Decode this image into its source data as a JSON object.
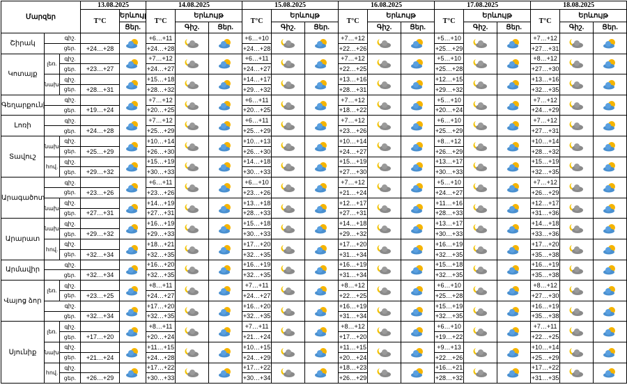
{
  "header": {
    "region": "Մարզեր",
    "temp": "T°C",
    "phen": "Երևույթ",
    "night": "Գիշ.",
    "day": "Ցեր.",
    "dates": [
      "13.08.2025",
      "14.08.2025",
      "15.08.2025",
      "16.08.2025",
      "17.08.2025",
      "18.08.2025"
    ]
  },
  "regions": [
    {
      "name": "Շիրակ",
      "blocks": [
        {
          "lines": [
            "գիշ.",
            "ցեր."
          ],
          "first": "+24…+28",
          "days": [
            [
              "+6…+11",
              "+24…+28"
            ],
            [
              "+6…+10",
              "+24…+28"
            ],
            [
              "+7…+12",
              "+22…+26"
            ],
            [
              "+5…+10",
              "+25…+29"
            ],
            [
              "+7…+12",
              "+27…+31"
            ]
          ]
        }
      ]
    },
    {
      "name": "Կոտայք",
      "blocks": [
        {
          "sub": "լեռ.",
          "lines": [
            "գիշ.",
            "ցեր."
          ],
          "first": "+23…+27",
          "days": [
            [
              "+7…+12",
              "+24…+27"
            ],
            [
              "+6…+11",
              "+24…+27"
            ],
            [
              "+7…+12",
              "+22…+25"
            ],
            [
              "+5…+10",
              "+25…+28"
            ],
            [
              "+8…+12",
              "+27…+30"
            ]
          ]
        },
        {
          "sub": "նախ.",
          "lines": [
            "գիշ.",
            "ցեր."
          ],
          "first": "+28…+31",
          "days": [
            [
              "+15…+18",
              "+28…+32"
            ],
            [
              "+14…+17",
              "+29…+32"
            ],
            [
              "+13…+16",
              "+28…+31"
            ],
            [
              "+12…+15",
              "+29…+32"
            ],
            [
              "+13…+16",
              "+32…+35"
            ]
          ]
        }
      ]
    },
    {
      "name": "Գեղարքունիք",
      "blocks": [
        {
          "lines": [
            "գիշ.",
            "ցեր."
          ],
          "first": "+19…+24",
          "days": [
            [
              "+7…+12",
              "+20…+25"
            ],
            [
              "+6…+11",
              "+20…+25"
            ],
            [
              "+7…+12",
              "+18…+22"
            ],
            [
              "+5…+10",
              "+20…+24"
            ],
            [
              "+7…+12",
              "+24…+29"
            ]
          ]
        }
      ]
    },
    {
      "name": "Լոռի",
      "blocks": [
        {
          "lines": [
            "գիշ.",
            "ցեր."
          ],
          "first": "+24…+28",
          "days": [
            [
              "+7…+12",
              "+25…+29"
            ],
            [
              "+6…+11",
              "+25…+29"
            ],
            [
              "+7…+12",
              "+23…+26"
            ],
            [
              "+6…+10",
              "+25…+29"
            ],
            [
              "+7…+12",
              "+27…+31"
            ]
          ]
        }
      ]
    },
    {
      "name": "Տավուշ",
      "blocks": [
        {
          "sub": "նախ.",
          "lines": [
            "գիշ.",
            "ցեր."
          ],
          "first": "+25…+29",
          "days": [
            [
              "+10…+14",
              "+26…+30"
            ],
            [
              "+10…+13",
              "+26…+30"
            ],
            [
              "+10…+14",
              "+24…+27"
            ],
            [
              "+8…+12",
              "+26…+29"
            ],
            [
              "+10…+14",
              "+28…+32"
            ]
          ]
        },
        {
          "sub": "հով.",
          "lines": [
            "գիշ.",
            "ցեր."
          ],
          "first": "+29…+32",
          "days": [
            [
              "+15…+19",
              "+30…+33"
            ],
            [
              "+14…+18",
              "+30…+33"
            ],
            [
              "+15…+19",
              "+27…+30"
            ],
            [
              "+13…+17",
              "+30…+33"
            ],
            [
              "+15…+19",
              "+32…+35"
            ]
          ]
        }
      ]
    },
    {
      "name": "Արագածոտն",
      "blocks": [
        {
          "lines": [
            "գիշ.",
            "ցեր."
          ],
          "first": "+23…+26",
          "days": [
            [
              "+6…+11",
              "+23…+26"
            ],
            [
              "+6…+10",
              "+23…+26"
            ],
            [
              "+7…+12",
              "+21…+24"
            ],
            [
              "+5…+10",
              "+24…+27"
            ],
            [
              "+7…+12",
              "+26…+29"
            ]
          ]
        },
        {
          "sub": "նախ.",
          "lines": [
            "գիշ.",
            "ցեր."
          ],
          "first": "+27…+31",
          "days": [
            [
              "+14…+19",
              "+27…+31"
            ],
            [
              "+13…+18",
              "+28…+33"
            ],
            [
              "+12…+17",
              "+27…+31"
            ],
            [
              "+11…+16",
              "+28…+33"
            ],
            [
              "+12…+17",
              "+31…+36"
            ]
          ]
        }
      ]
    },
    {
      "name": "Արարատ",
      "blocks": [
        {
          "sub": "նախ.",
          "lines": [
            "գիշ.",
            "ցեր."
          ],
          "first": "+29…+32",
          "days": [
            [
              "+16…+19",
              "+29…+33"
            ],
            [
              "+15…+18",
              "+30…+33"
            ],
            [
              "+14…+18",
              "+29…+32"
            ],
            [
              "+13…+17",
              "+30…+33"
            ],
            [
              "+14…+18",
              "+33…+36"
            ]
          ]
        },
        {
          "sub": "հով.",
          "lines": [
            "գիշ.",
            "ցեր."
          ],
          "first": "+32…+34",
          "days": [
            [
              "+18…+21",
              "+32…+35"
            ],
            [
              "+17…+20",
              "+32…+35"
            ],
            [
              "+17…+20",
              "+31…+34"
            ],
            [
              "+16…+19",
              "+32…+35"
            ],
            [
              "+17…+20",
              "+35…+38"
            ]
          ]
        }
      ]
    },
    {
      "name": "Արմավիր",
      "blocks": [
        {
          "lines": [
            "գիշ.",
            "ցեր."
          ],
          "first": "+32…+34",
          "days": [
            [
              "+16…+20",
              "+32…+35"
            ],
            [
              "+16…+19",
              "+32…+35"
            ],
            [
              "+16…+19",
              "+31…+34"
            ],
            [
              "+15…+18",
              "+32…+35"
            ],
            [
              "+16…+19",
              "+35…+38"
            ]
          ]
        }
      ]
    },
    {
      "name": "Վայոց ձոր",
      "blocks": [
        {
          "sub": "լեռ.",
          "lines": [
            "գիշ.",
            "ցեր."
          ],
          "first": "+23…+25",
          "days": [
            [
              "+8…+11",
              "+24…+27"
            ],
            [
              "+7…+11",
              "+24…+27"
            ],
            [
              "+8…+12",
              "+22…+25"
            ],
            [
              "+6…+10",
              "+25…+28"
            ],
            [
              "+8…+12",
              "+27…+30"
            ]
          ]
        },
        {
          "lines": [
            "գիշ.",
            "ցեր."
          ],
          "first": "+32…+34",
          "days": [
            [
              "+17…+20",
              "+32…+35"
            ],
            [
              "+16…+20",
              "+32…+35"
            ],
            [
              "+16…+19",
              "+31…+34"
            ],
            [
              "+15…+19",
              "+32…+35"
            ],
            [
              "+16…+19",
              "+35…+38"
            ]
          ]
        }
      ]
    },
    {
      "name": "Սյունիք",
      "blocks": [
        {
          "sub": "լեռ.",
          "lines": [
            "գիշ.",
            "ցեր."
          ],
          "first": "+17…+20",
          "days": [
            [
              "+8…+11",
              "+20…+24"
            ],
            [
              "+7…+11",
              "+21…+24"
            ],
            [
              "+8…+12",
              "+17…+20"
            ],
            [
              "+6…+10",
              "+19…+22"
            ],
            [
              "+7…+11",
              "+22…+25"
            ]
          ]
        },
        {
          "sub": "նախ.",
          "lines": [
            "գիշ.",
            "ցեր."
          ],
          "first": "+21…+24",
          "days": [
            [
              "+11…+15",
              "+24…+28"
            ],
            [
              "+10…+15",
              "+24…+29"
            ],
            [
              "+11…+15",
              "+20…+24"
            ],
            [
              "+9…+13",
              "+22…+26"
            ],
            [
              "+10…+14",
              "+25…+29"
            ]
          ]
        },
        {
          "sub": "հով.",
          "lines": [
            "գիշ.",
            "ցեր."
          ],
          "first": "+26…+29",
          "days": [
            [
              "+17…+22",
              "+30…+33"
            ],
            [
              "+17…+22",
              "+30…+34"
            ],
            [
              "+18…+23",
              "+26…+29"
            ],
            [
              "+16…+21",
              "+28…+32"
            ],
            [
              "+17…+22",
              "+31…+35"
            ]
          ]
        }
      ]
    }
  ]
}
